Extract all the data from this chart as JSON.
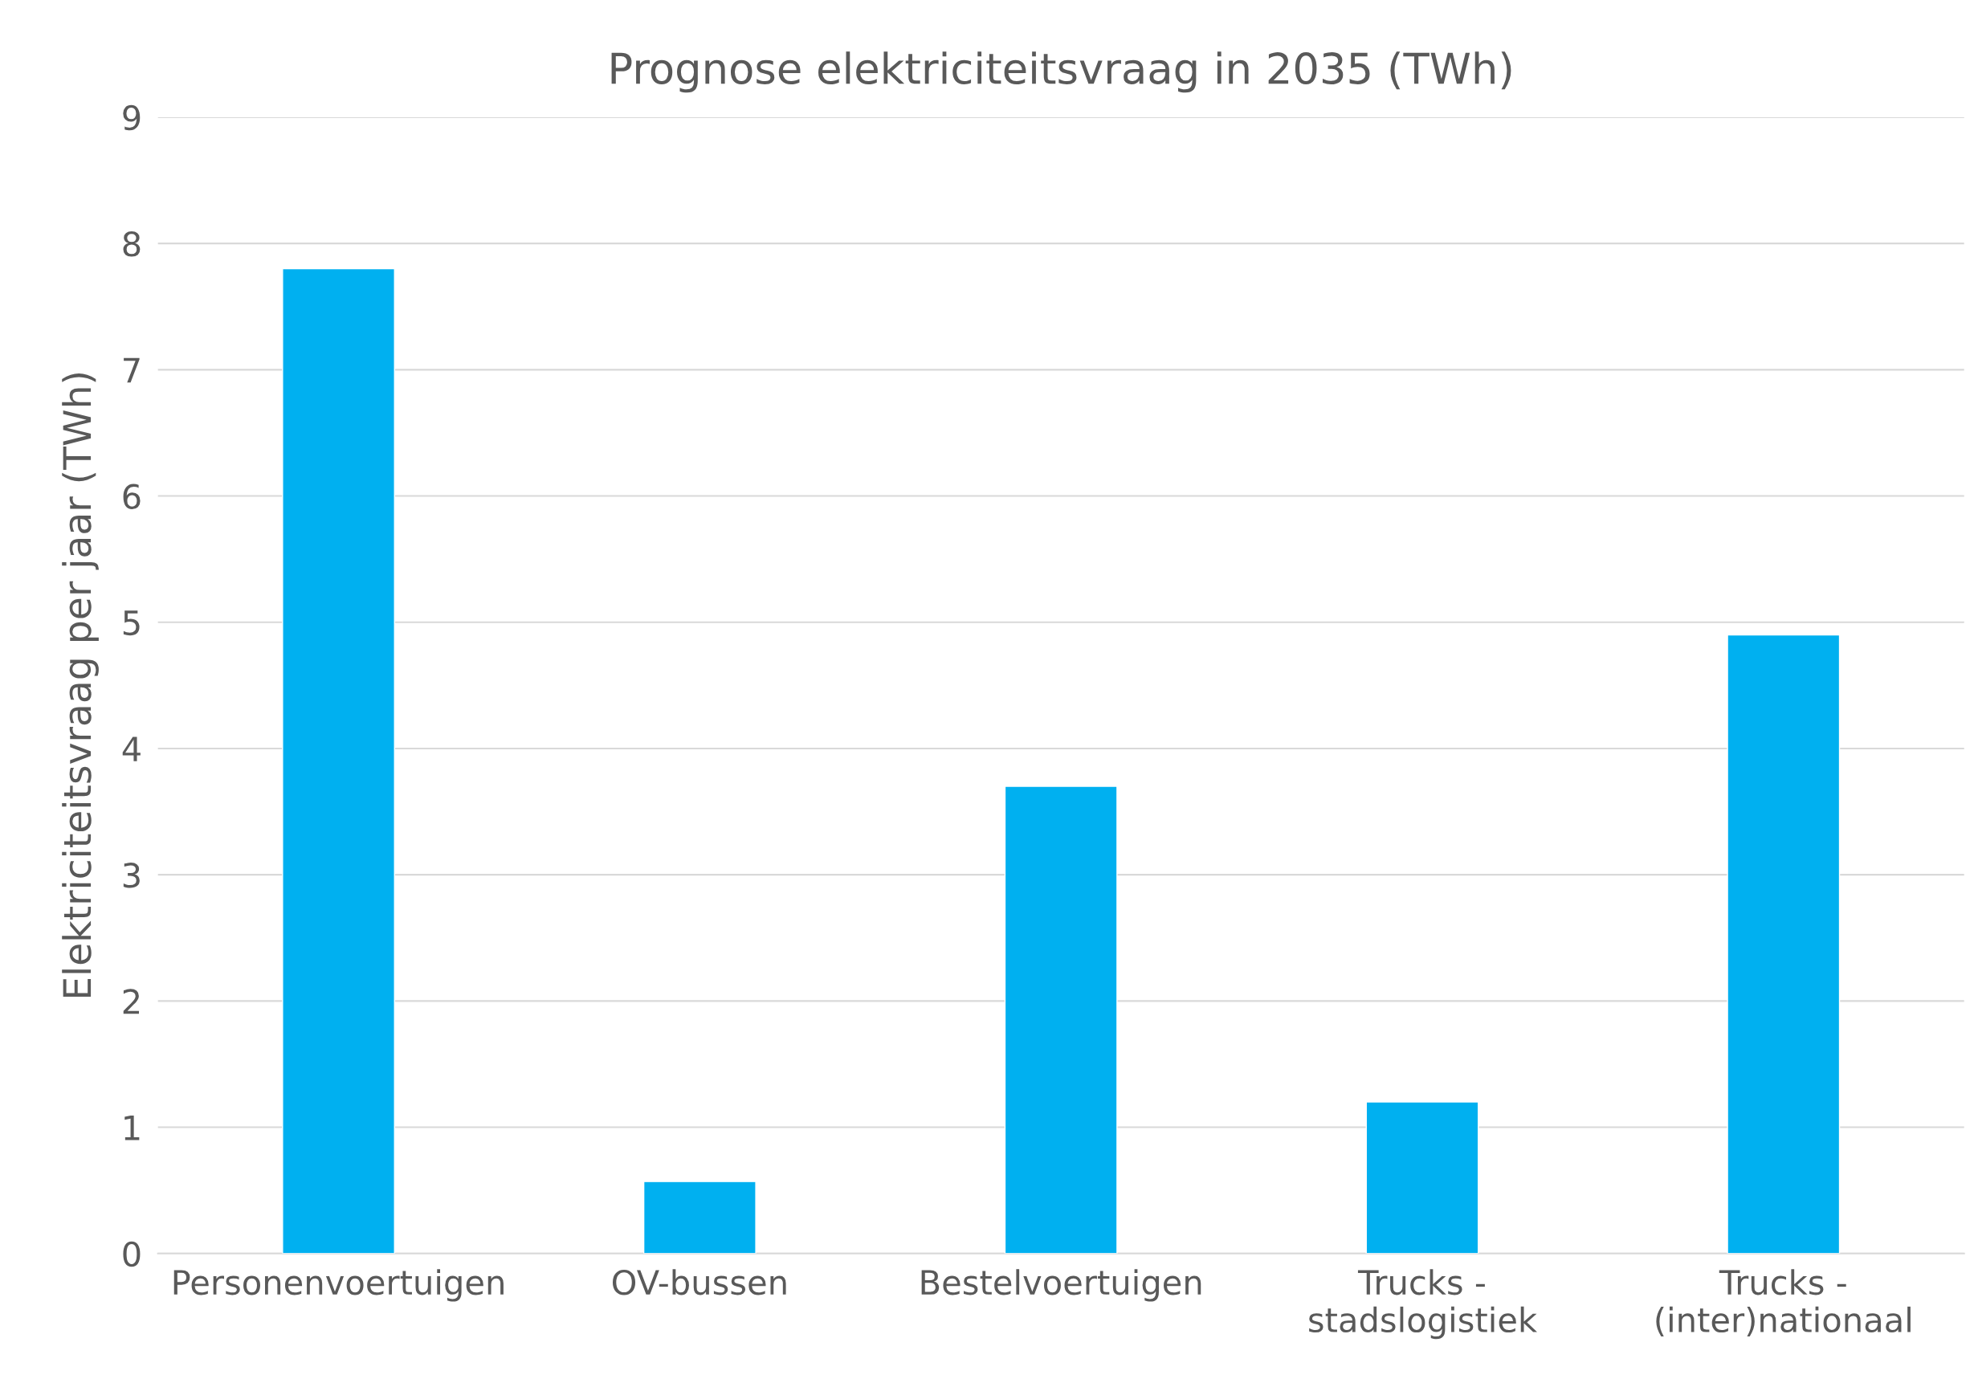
{
  "chart_data": {
    "type": "bar",
    "title": "Prognose elektriciteitsvraag in 2035 (TWh)",
    "ylabel": "Elektriciteitsvraag per jaar (TWh)",
    "categories": [
      "Personenvoertuigen",
      "OV-bussen",
      "Bestelvoertuigen",
      "Trucks -\nstadslogistiek",
      "Trucks -\n(inter)nationaal"
    ],
    "values": [
      7.8,
      0.57,
      3.7,
      1.2,
      4.9
    ],
    "color": "#00b0f0",
    "ylim": [
      0,
      9
    ],
    "yticks": [
      0,
      1,
      2,
      3,
      4,
      5,
      6,
      7,
      8,
      9
    ],
    "grid": "y",
    "legend": false
  }
}
